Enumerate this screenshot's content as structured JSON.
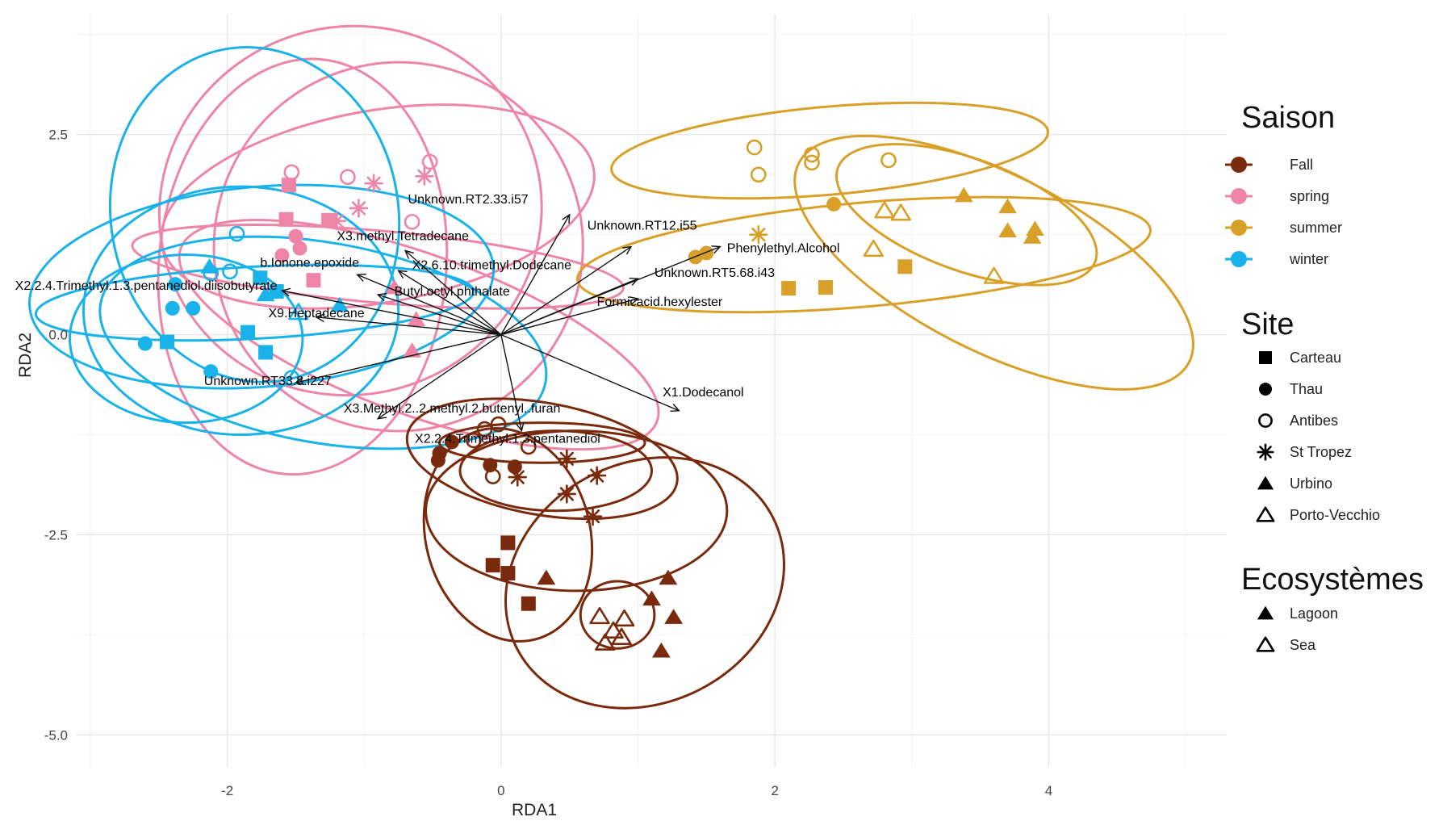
{
  "chart_data": {
    "type": "scatter",
    "title": "",
    "xlabel": "RDA1",
    "ylabel": "RDA2",
    "xlim": [
      -3.1,
      5.3
    ],
    "ylim": [
      -5.4,
      4.0
    ],
    "x_ticks": [
      {
        "value": -2,
        "label": "-2"
      },
      {
        "value": 0,
        "label": "0"
      },
      {
        "value": 2,
        "label": "2"
      },
      {
        "value": 4,
        "label": "4"
      }
    ],
    "y_ticks": [
      {
        "value": 2.5,
        "label": "2.5"
      },
      {
        "value": 0,
        "label": "0.0"
      },
      {
        "value": -2.5,
        "label": "-2.5"
      },
      {
        "value": -5,
        "label": "-5.0"
      }
    ],
    "grid": true,
    "season_colors": {
      "Fall": "#7a2a0c",
      "spring": "#ef85a6",
      "summer": "#d8a028",
      "winter": "#19b2ea"
    },
    "legends": {
      "season": {
        "title": "Saison",
        "items": [
          {
            "label": "Fall",
            "color": "#7a2a0c"
          },
          {
            "label": "spring",
            "color": "#ef85a6"
          },
          {
            "label": "summer",
            "color": "#d8a028"
          },
          {
            "label": "winter",
            "color": "#19b2ea"
          }
        ]
      },
      "site": {
        "title": "Site",
        "items": [
          {
            "label": "Carteau",
            "shape": "square"
          },
          {
            "label": "Thau",
            "shape": "circle"
          },
          {
            "label": "Antibes",
            "shape": "circle-open"
          },
          {
            "label": "St Tropez",
            "shape": "star"
          },
          {
            "label": "Urbino",
            "shape": "triangle"
          },
          {
            "label": "Porto-Vecchio",
            "shape": "triangle-open"
          }
        ]
      },
      "ecosystem": {
        "title": "Ecosystèmes",
        "items": [
          {
            "label": "Lagoon",
            "shape": "triangle-filled"
          },
          {
            "label": "Sea",
            "shape": "triangle-open"
          }
        ]
      }
    },
    "loadings": [
      {
        "label": "Unknown.RT2.33.i57",
        "x": 0.5,
        "y": 1.5,
        "lx": -0.68,
        "ly": 1.64
      },
      {
        "label": "Unknown.RT12.i55",
        "x": 0.95,
        "y": 1.1,
        "lx": 0.63,
        "ly": 1.31
      },
      {
        "label": "X3.methyl.Tetradecane",
        "x": -0.7,
        "y": 1.05,
        "lx": -1.2,
        "ly": 1.18
      },
      {
        "label": "Phenylethyl.Alcohol",
        "x": 1.6,
        "y": 1.1,
        "lx": 1.65,
        "ly": 1.03
      },
      {
        "label": "b.Ionone.epoxide",
        "x": -1.05,
        "y": 0.75,
        "lx": -1.76,
        "ly": 0.85
      },
      {
        "label": "X2.6.10.trimethyl.Dodecane",
        "x": -0.75,
        "y": 0.8,
        "lx": -0.65,
        "ly": 0.82
      },
      {
        "label": "Unknown.RT5.68.i43",
        "x": 1.0,
        "y": 0.7,
        "lx": 1.12,
        "ly": 0.72
      },
      {
        "label": "X2.2.4.Trimethyl.1.3.pentanediol.diisobutyrate",
        "x": -1.6,
        "y": 0.55,
        "lx": -3.55,
        "ly": 0.56
      },
      {
        "label": "Butyl.octyl.phthalate",
        "x": -0.9,
        "y": 0.5,
        "lx": -0.78,
        "ly": 0.49
      },
      {
        "label": "Formicacid.hexylester",
        "x": 1.0,
        "y": 0.45,
        "lx": 0.7,
        "ly": 0.36
      },
      {
        "label": "X9.Heptadecane",
        "x": -1.35,
        "y": 0.22,
        "lx": -1.7,
        "ly": 0.22
      },
      {
        "label": "Unknown.RT33.8.i227",
        "x": -1.5,
        "y": -0.6,
        "lx": -2.17,
        "ly": -0.63
      },
      {
        "label": "X1.Dodecanol",
        "x": 1.3,
        "y": -0.95,
        "lx": 1.18,
        "ly": -0.77
      },
      {
        "label": "X3.Methyl.2..2.methyl.2.butenyl..furan",
        "x": -0.9,
        "y": -1.05,
        "lx": -1.15,
        "ly": -0.97
      },
      {
        "label": "X2.2.4.Trimethyl.1.3.pentanediol",
        "x": 0.15,
        "y": -1.2,
        "lx": -0.63,
        "ly": -1.35
      }
    ],
    "ellipses": [
      {
        "season": "spring",
        "cx": -0.9,
        "cy": 1.6,
        "rx": 1.6,
        "ry": 1.2,
        "angle": 10
      },
      {
        "season": "spring",
        "cx": -1.1,
        "cy": 1.55,
        "rx": 1.4,
        "ry": 2.3,
        "angle": 15
      },
      {
        "season": "spring",
        "cx": -0.75,
        "cy": 1.1,
        "rx": 1.35,
        "ry": 2.3,
        "angle": 40
      },
      {
        "season": "spring",
        "cx": -1.45,
        "cy": 0.85,
        "rx": 1.05,
        "ry": 2.6,
        "angle": -5
      },
      {
        "season": "spring",
        "cx": -0.9,
        "cy": 0.85,
        "rx": 1.8,
        "ry": 0.45,
        "angle": -5
      },
      {
        "season": "spring",
        "cx": -0.6,
        "cy": 0.0,
        "rx": 1.85,
        "ry": 1.0,
        "angle": -20
      },
      {
        "season": "winter",
        "cx": -1.8,
        "cy": 1.5,
        "rx": 1.05,
        "ry": 2.1,
        "angle": 10
      },
      {
        "season": "winter",
        "cx": -1.75,
        "cy": 0.6,
        "rx": 1.7,
        "ry": 1.25,
        "angle": 5
      },
      {
        "season": "winter",
        "cx": -1.9,
        "cy": 0.3,
        "rx": 1.15,
        "ry": 1.55,
        "angle": 0
      },
      {
        "season": "winter",
        "cx": -1.3,
        "cy": -0.1,
        "rx": 1.65,
        "ry": 1.25,
        "angle": -10
      },
      {
        "season": "winter",
        "cx": -2.3,
        "cy": -0.05,
        "rx": 0.85,
        "ry": 1.05,
        "angle": 0
      },
      {
        "season": "winter",
        "cx": -1.8,
        "cy": 0.4,
        "rx": 1.6,
        "ry": 0.45,
        "angle": 3
      },
      {
        "season": "summer",
        "cx": 2.4,
        "cy": 2.3,
        "rx": 1.6,
        "ry": 0.55,
        "angle": 5
      },
      {
        "season": "summer",
        "cx": 2.65,
        "cy": 1.0,
        "rx": 2.1,
        "ry": 0.65,
        "angle": 5
      },
      {
        "season": "summer",
        "cx": 3.6,
        "cy": 0.9,
        "rx": 1.6,
        "ry": 1.1,
        "angle": -27
      },
      {
        "season": "summer",
        "cx": 3.4,
        "cy": 1.5,
        "rx": 1.0,
        "ry": 0.7,
        "angle": -20
      },
      {
        "season": "Fall",
        "cx": 0.3,
        "cy": -1.55,
        "rx": 1.0,
        "ry": 0.7,
        "angle": -10
      },
      {
        "season": "Fall",
        "cx": 0.3,
        "cy": -1.35,
        "rx": 0.75,
        "ry": 0.25,
        "angle": 0
      },
      {
        "season": "Fall",
        "cx": 0.4,
        "cy": -1.7,
        "rx": 0.7,
        "ry": 0.5,
        "angle": 0
      },
      {
        "season": "Fall",
        "cx": 0.05,
        "cy": -2.5,
        "rx": 0.6,
        "ry": 1.35,
        "angle": 15
      },
      {
        "season": "Fall",
        "cx": 1.05,
        "cy": -3.1,
        "rx": 1.05,
        "ry": 1.5,
        "angle": 27
      },
      {
        "season": "Fall",
        "cx": 0.85,
        "cy": -3.5,
        "rx": 0.27,
        "ry": 0.42,
        "angle": 0
      },
      {
        "season": "Fall",
        "cx": 0.55,
        "cy": -2.2,
        "rx": 1.1,
        "ry": 1.0,
        "angle": 0
      }
    ],
    "points": [
      {
        "x": -1.53,
        "y": 2.03,
        "site": "Antibes",
        "season": "spring"
      },
      {
        "x": -1.12,
        "y": 1.97,
        "site": "Antibes",
        "season": "spring"
      },
      {
        "x": -0.52,
        "y": 2.16,
        "site": "Antibes",
        "season": "spring"
      },
      {
        "x": -0.65,
        "y": 1.41,
        "site": "Antibes",
        "season": "spring"
      },
      {
        "x": -0.93,
        "y": 1.89,
        "site": "St Tropez",
        "season": "spring"
      },
      {
        "x": -0.56,
        "y": 1.98,
        "site": "St Tropez",
        "season": "spring"
      },
      {
        "x": -1.04,
        "y": 1.58,
        "site": "St Tropez",
        "season": "spring"
      },
      {
        "x": -1.2,
        "y": 1.42,
        "site": "St Tropez",
        "season": "spring"
      },
      {
        "x": -1.55,
        "y": 1.87,
        "site": "Carteau",
        "season": "spring"
      },
      {
        "x": -1.26,
        "y": 1.43,
        "site": "Carteau",
        "season": "spring"
      },
      {
        "x": -1.57,
        "y": 1.44,
        "site": "Carteau",
        "season": "spring"
      },
      {
        "x": -1.5,
        "y": 1.23,
        "site": "Thau",
        "season": "spring"
      },
      {
        "x": -1.6,
        "y": 0.99,
        "site": "Thau",
        "season": "spring"
      },
      {
        "x": -1.37,
        "y": 0.68,
        "site": "Carteau",
        "season": "spring"
      },
      {
        "x": -1.47,
        "y": 1.08,
        "site": "Thau",
        "season": "spring"
      },
      {
        "x": -0.62,
        "y": 0.19,
        "site": "Urbino",
        "season": "spring"
      },
      {
        "x": -0.65,
        "y": -0.2,
        "site": "Urbino",
        "season": "spring"
      },
      {
        "x": -0.78,
        "y": 0.59,
        "site": "Urbino",
        "season": "spring"
      },
      {
        "x": -1.93,
        "y": 1.26,
        "site": "Antibes",
        "season": "winter"
      },
      {
        "x": -1.98,
        "y": 0.79,
        "site": "Antibes",
        "season": "winter"
      },
      {
        "x": -2.12,
        "y": 0.77,
        "site": "Antibes",
        "season": "winter"
      },
      {
        "x": -1.53,
        "y": -0.54,
        "site": "Antibes",
        "season": "winter"
      },
      {
        "x": -2.25,
        "y": 0.33,
        "site": "Thau",
        "season": "winter"
      },
      {
        "x": -2.4,
        "y": 0.33,
        "site": "Thau",
        "season": "winter"
      },
      {
        "x": -2.6,
        "y": -0.11,
        "site": "Thau",
        "season": "winter"
      },
      {
        "x": -2.38,
        "y": 0.63,
        "site": "Thau",
        "season": "winter"
      },
      {
        "x": -2.12,
        "y": -0.46,
        "site": "Thau",
        "season": "winter"
      },
      {
        "x": -2.44,
        "y": -0.09,
        "site": "Carteau",
        "season": "winter"
      },
      {
        "x": -1.85,
        "y": 0.03,
        "site": "Carteau",
        "season": "winter"
      },
      {
        "x": -1.72,
        "y": -0.22,
        "site": "Carteau",
        "season": "winter"
      },
      {
        "x": -1.76,
        "y": 0.71,
        "site": "Carteau",
        "season": "winter"
      },
      {
        "x": -1.64,
        "y": 0.54,
        "site": "Carteau",
        "season": "winter"
      },
      {
        "x": -2.13,
        "y": 0.85,
        "site": "Urbino",
        "season": "winter"
      },
      {
        "x": -1.72,
        "y": 0.5,
        "site": "Urbino",
        "season": "winter"
      },
      {
        "x": -1.18,
        "y": 0.37,
        "site": "Urbino",
        "season": "winter"
      },
      {
        "x": -1.48,
        "y": 0.28,
        "site": "Porto-Vecchio",
        "season": "winter"
      },
      {
        "x": 1.85,
        "y": 2.34,
        "site": "Antibes",
        "season": "summer"
      },
      {
        "x": 1.88,
        "y": 2.0,
        "site": "Antibes",
        "season": "summer"
      },
      {
        "x": 2.27,
        "y": 2.25,
        "site": "Antibes",
        "season": "summer"
      },
      {
        "x": 2.27,
        "y": 2.15,
        "site": "Antibes",
        "season": "summer"
      },
      {
        "x": 2.83,
        "y": 2.18,
        "site": "Antibes",
        "season": "summer"
      },
      {
        "x": 1.88,
        "y": 1.25,
        "site": "St Tropez",
        "season": "summer"
      },
      {
        "x": 2.43,
        "y": 1.63,
        "site": "Thau",
        "season": "summer"
      },
      {
        "x": 1.5,
        "y": 1.02,
        "site": "Thau",
        "season": "summer"
      },
      {
        "x": 1.42,
        "y": 0.97,
        "site": "Thau",
        "season": "summer"
      },
      {
        "x": 2.1,
        "y": 0.58,
        "site": "Carteau",
        "season": "summer"
      },
      {
        "x": 2.37,
        "y": 0.59,
        "site": "Carteau",
        "season": "summer"
      },
      {
        "x": 2.95,
        "y": 0.85,
        "site": "Carteau",
        "season": "summer"
      },
      {
        "x": 3.38,
        "y": 1.74,
        "site": "Urbino",
        "season": "summer"
      },
      {
        "x": 3.7,
        "y": 1.6,
        "site": "Urbino",
        "season": "summer"
      },
      {
        "x": 3.7,
        "y": 1.3,
        "site": "Urbino",
        "season": "summer"
      },
      {
        "x": 3.9,
        "y": 1.32,
        "site": "Urbino",
        "season": "summer"
      },
      {
        "x": 3.88,
        "y": 1.22,
        "site": "Urbino",
        "season": "summer"
      },
      {
        "x": 2.8,
        "y": 1.55,
        "site": "Porto-Vecchio",
        "season": "summer"
      },
      {
        "x": 2.92,
        "y": 1.52,
        "site": "Porto-Vecchio",
        "season": "summer"
      },
      {
        "x": 2.72,
        "y": 1.07,
        "site": "Porto-Vecchio",
        "season": "summer"
      },
      {
        "x": 3.6,
        "y": 0.73,
        "site": "Porto-Vecchio",
        "season": "summer"
      },
      {
        "x": -0.12,
        "y": -1.18,
        "site": "Antibes",
        "season": "Fall"
      },
      {
        "x": -0.02,
        "y": -1.12,
        "site": "Antibes",
        "season": "Fall"
      },
      {
        "x": -0.2,
        "y": -1.32,
        "site": "Antibes",
        "season": "Fall"
      },
      {
        "x": 0.2,
        "y": -1.4,
        "site": "Antibes",
        "season": "Fall"
      },
      {
        "x": -0.06,
        "y": -1.77,
        "site": "Antibes",
        "season": "Fall"
      },
      {
        "x": -0.36,
        "y": -1.34,
        "site": "Thau",
        "season": "Fall"
      },
      {
        "x": -0.45,
        "y": -1.48,
        "site": "Thau",
        "season": "Fall"
      },
      {
        "x": -0.46,
        "y": -1.57,
        "site": "Thau",
        "season": "Fall"
      },
      {
        "x": -0.08,
        "y": -1.63,
        "site": "Thau",
        "season": "Fall"
      },
      {
        "x": 0.1,
        "y": -1.65,
        "site": "Thau",
        "season": "Fall"
      },
      {
        "x": 0.48,
        "y": -1.55,
        "site": "St Tropez",
        "season": "Fall"
      },
      {
        "x": 0.7,
        "y": -1.76,
        "site": "St Tropez",
        "season": "Fall"
      },
      {
        "x": 0.48,
        "y": -1.99,
        "site": "St Tropez",
        "season": "Fall"
      },
      {
        "x": 0.67,
        "y": -2.27,
        "site": "St Tropez",
        "season": "Fall"
      },
      {
        "x": 0.12,
        "y": -1.78,
        "site": "St Tropez",
        "season": "Fall"
      },
      {
        "x": 0.05,
        "y": -2.6,
        "site": "Carteau",
        "season": "Fall"
      },
      {
        "x": -0.06,
        "y": -2.88,
        "site": "Carteau",
        "season": "Fall"
      },
      {
        "x": 0.05,
        "y": -2.98,
        "site": "Carteau",
        "season": "Fall"
      },
      {
        "x": 0.2,
        "y": -3.36,
        "site": "Carteau",
        "season": "Fall"
      },
      {
        "x": 0.33,
        "y": -3.04,
        "site": "Urbino",
        "season": "Fall"
      },
      {
        "x": 1.22,
        "y": -3.04,
        "site": "Urbino",
        "season": "Fall"
      },
      {
        "x": 1.1,
        "y": -3.3,
        "site": "Urbino",
        "season": "Fall"
      },
      {
        "x": 1.26,
        "y": -3.53,
        "site": "Urbino",
        "season": "Fall"
      },
      {
        "x": 1.17,
        "y": -3.95,
        "site": "Urbino",
        "season": "Fall"
      },
      {
        "x": 0.72,
        "y": -3.52,
        "site": "Porto-Vecchio",
        "season": "Fall"
      },
      {
        "x": 0.9,
        "y": -3.55,
        "site": "Porto-Vecchio",
        "season": "Fall"
      },
      {
        "x": 0.82,
        "y": -3.7,
        "site": "Porto-Vecchio",
        "season": "Fall"
      },
      {
        "x": 0.88,
        "y": -3.78,
        "site": "Porto-Vecchio",
        "season": "Fall"
      },
      {
        "x": 0.76,
        "y": -3.85,
        "site": "Porto-Vecchio",
        "season": "Fall"
      }
    ]
  }
}
